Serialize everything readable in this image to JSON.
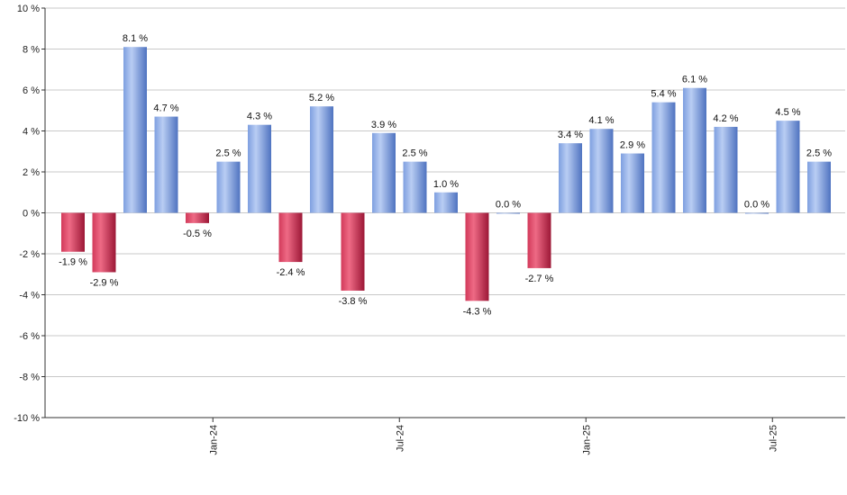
{
  "chart_data": {
    "type": "bar",
    "title": "",
    "xlabel": "",
    "ylabel": "",
    "ylim": [
      -10,
      10
    ],
    "y_ticks": [
      -10,
      -8,
      -6,
      -4,
      -2,
      0,
      2,
      4,
      6,
      8,
      10
    ],
    "y_tick_suffix": " %",
    "grid": true,
    "values": [
      -1.9,
      -2.9,
      8.1,
      4.7,
      -0.5,
      2.5,
      4.3,
      -2.4,
      5.2,
      -3.8,
      3.9,
      2.5,
      1.0,
      -4.3,
      0.0,
      -2.7,
      3.4,
      4.1,
      2.9,
      5.4,
      6.1,
      4.2,
      0.0,
      4.5,
      2.5
    ],
    "x_ticks": [
      {
        "label": "Jan-24",
        "position": 4.5
      },
      {
        "label": "Jul-24",
        "position": 10.5
      },
      {
        "label": "Jan-25",
        "position": 16.5
      },
      {
        "label": "Jul-25",
        "position": 22.5
      }
    ],
    "colors": {
      "positive_light": "#b8cdf3",
      "positive_dark": "#5a7fcc",
      "negative_light": "#ef6a84",
      "negative_dark": "#a81c3c"
    }
  }
}
